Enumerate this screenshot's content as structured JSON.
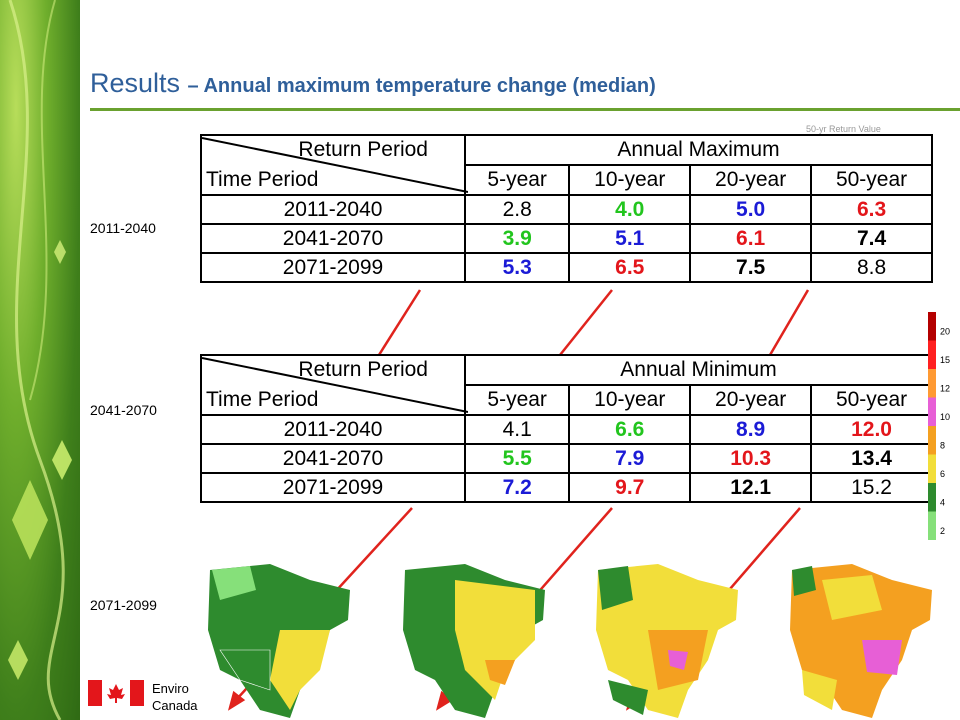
{
  "title": {
    "main": "Results",
    "sub": "– Annual maximum temperature change (median)"
  },
  "period_labels": [
    "2011-2040",
    "2041-2070",
    "2071-2099"
  ],
  "faint_note": "50-yr Return Value",
  "tables": [
    {
      "header_return_period": "Return Period",
      "header_time_period": "Time Period",
      "header_group": "Annual Maximum",
      "columns": [
        "5-year",
        "10-year",
        "20-year",
        "50-year"
      ],
      "rows": [
        {
          "period": "2011-2040",
          "values": [
            "2.8",
            "4.0",
            "5.0",
            "6.3"
          ]
        },
        {
          "period": "2041-2070",
          "values": [
            "3.9",
            "5.1",
            "6.1",
            "7.4"
          ]
        },
        {
          "period": "2071-2099",
          "values": [
            "5.3",
            "6.5",
            "7.5",
            "8.8"
          ]
        }
      ]
    },
    {
      "header_return_period": "Return Period",
      "header_time_period": "Time Period",
      "header_group": "Annual Minimum",
      "columns": [
        "5-year",
        "10-year",
        "20-year",
        "50-year"
      ],
      "rows": [
        {
          "period": "2011-2040",
          "values": [
            "4.1",
            "6.6",
            "8.9",
            "12.0"
          ]
        },
        {
          "period": "2041-2070",
          "values": [
            "5.5",
            "7.9",
            "10.3",
            "13.4"
          ]
        },
        {
          "period": "2071-2099",
          "values": [
            "7.2",
            "9.7",
            "12.1",
            "15.2"
          ]
        }
      ]
    }
  ],
  "legend": {
    "labels": [
      "20",
      "15",
      "12",
      "10",
      "8",
      "6",
      "4",
      "2"
    ],
    "colors": [
      "#b40000",
      "#ff2020",
      "#ff9a33",
      "#e75fd6",
      "#f4a020",
      "#f2de3a",
      "#2e8b2e",
      "#86e07a"
    ]
  },
  "colors": {
    "green": "#22c51e",
    "blue": "#1b1bd6",
    "red": "#e3161b",
    "black": "#000000",
    "title_blue": "#2f5f9a",
    "arrow_red": "#e0231d"
  },
  "footer": {
    "line1": "Enviro",
    "line2": "Canada"
  }
}
